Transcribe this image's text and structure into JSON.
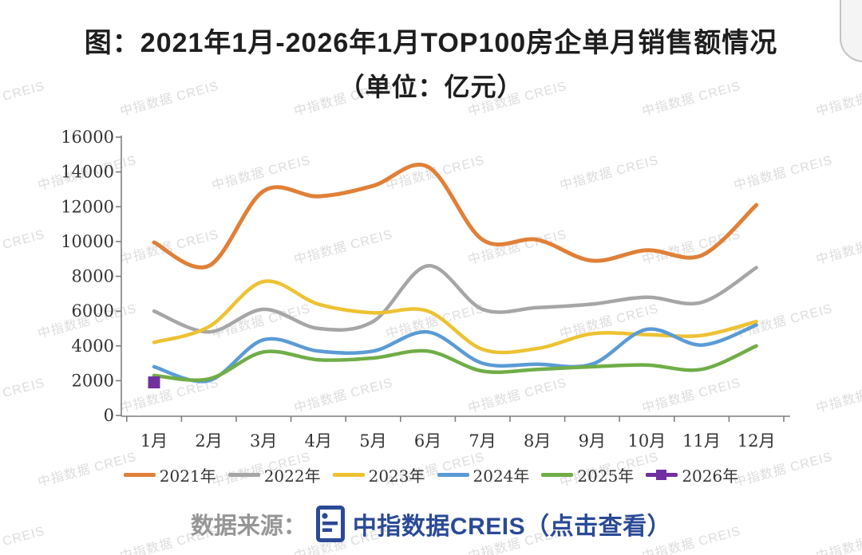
{
  "title": {
    "line1": "图：2021年1月-2026年1月TOP100房企单月销售额情况",
    "line2": "（单位：亿元）"
  },
  "watermark": {
    "text": "中指数据 CREIS"
  },
  "chart_data": {
    "type": "line",
    "title": "2021年1月-2026年1月TOP100房企单月销售额情况",
    "unit": "亿元",
    "categories": [
      "1月",
      "2月",
      "3月",
      "4月",
      "5月",
      "6月",
      "7月",
      "8月",
      "9月",
      "10月",
      "11月",
      "12月"
    ],
    "series": [
      {
        "name": "2021年",
        "color": "#e08038",
        "line_width": 5,
        "values": [
          9950,
          8600,
          12900,
          12600,
          13200,
          14300,
          10100,
          10100,
          8900,
          9500,
          9200,
          12100
        ]
      },
      {
        "name": "2022年",
        "color": "#a6a6a6",
        "line_width": 4.5,
        "values": [
          6000,
          4800,
          6100,
          5000,
          5400,
          8600,
          6100,
          6200,
          6400,
          6800,
          6500,
          8500
        ]
      },
      {
        "name": "2023年",
        "color": "#edc232",
        "line_width": 4.5,
        "values": [
          4200,
          5100,
          7700,
          6400,
          5900,
          6000,
          3800,
          3850,
          4700,
          4650,
          4600,
          5400
        ]
      },
      {
        "name": "2024年",
        "color": "#5b9bd5",
        "line_width": 4.5,
        "values": [
          2800,
          2000,
          4350,
          3700,
          3700,
          4800,
          3000,
          2950,
          2950,
          4950,
          4050,
          5200
        ]
      },
      {
        "name": "2025年",
        "color": "#70ad47",
        "line_width": 4.5,
        "values": [
          2300,
          2100,
          3650,
          3200,
          3300,
          3700,
          2550,
          2650,
          2800,
          2900,
          2650,
          4000
        ]
      },
      {
        "name": "2026年",
        "color": "#7030a0",
        "line_width": 4.5,
        "marker": "square",
        "values": [
          1900
        ]
      }
    ],
    "ylim": [
      0,
      16000
    ],
    "ytick_step": 2000,
    "grid": false,
    "legend_position": "bottom"
  },
  "source": {
    "prefix": "数据来源：",
    "icon": "document-icon",
    "text": "中指数据CREIS（点击查看）"
  }
}
